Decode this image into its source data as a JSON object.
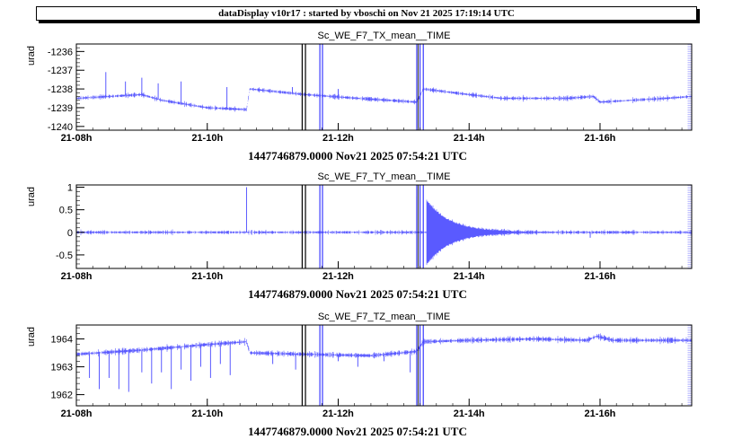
{
  "banner": "dataDisplay v10r17 : started by vboschi on Nov 21 2025 17:19:14 UTC",
  "colors": {
    "trace": "#5a5aff",
    "marker": "#000000",
    "marker_blue": "#3a3aff"
  },
  "chart_data": [
    {
      "type": "line",
      "title": "Sc_WE_F7_TX_mean__TIME",
      "ylabel": "urad",
      "footer": "1447746879.0000 Nov21 2025 07:54:21 UTC",
      "x_tick_labels": [
        "21-08h",
        "21-10h",
        "21-12h",
        "21-14h",
        "21-16h"
      ],
      "x_ticks_hours": [
        8,
        10,
        12,
        14,
        16
      ],
      "xlim_hours": [
        8.0,
        17.4
      ],
      "ylim": [
        -1240.2,
        -1235.6
      ],
      "y_ticks": [
        -1240,
        -1239,
        -1238,
        -1237,
        -1236
      ],
      "series": [
        {
          "x_hours": [
            8.0,
            9.0,
            9.3,
            10.0,
            10.6,
            10.65,
            11.5,
            12.3,
            13.2,
            13.3,
            14.0,
            14.5,
            15.0,
            15.5,
            15.9,
            16.0,
            16.5,
            17.0,
            17.4
          ],
          "values": [
            -1238.5,
            -1238.3,
            -1238.6,
            -1239.0,
            -1239.1,
            -1238.0,
            -1238.3,
            -1238.5,
            -1238.7,
            -1238.0,
            -1238.3,
            -1238.5,
            -1238.5,
            -1238.5,
            -1238.4,
            -1238.7,
            -1238.6,
            -1238.5,
            -1238.4
          ],
          "noise": 0.08,
          "spikes_x": [
            8.45,
            8.75,
            9.0,
            9.25,
            9.6,
            10.3,
            11.3,
            12.0
          ],
          "spikes_v": [
            -1237.1,
            -1237.6,
            -1237.4,
            -1237.7,
            -1237.6,
            -1237.9,
            -1237.9,
            -1238.0
          ]
        }
      ],
      "markers_black": [
        11.45,
        11.5
      ],
      "markers_blue": [
        11.72,
        11.76,
        13.2,
        13.25,
        13.3
      ]
    },
    {
      "type": "line",
      "title": "Sc_WE_F7_TY_mean__TIME",
      "ylabel": "urad",
      "footer": "1447746879.0000 Nov21 2025 07:54:21 UTC",
      "x_tick_labels": [
        "21-08h",
        "21-10h",
        "21-12h",
        "21-14h",
        "21-16h"
      ],
      "x_ticks_hours": [
        8,
        10,
        12,
        14,
        16
      ],
      "xlim_hours": [
        8.0,
        17.4
      ],
      "ylim": [
        -0.8,
        1.05
      ],
      "y_ticks": [
        -0.5,
        0,
        0.5,
        1
      ],
      "y_tick_labels": [
        "-0.5",
        "0",
        "0.5",
        "1"
      ],
      "series": [
        {
          "x_hours": [
            8.0,
            13.1,
            13.35,
            14.0,
            17.4
          ],
          "values": [
            0.0,
            0.0,
            0.0,
            0.0,
            0.0
          ],
          "noise": 0.03,
          "burst_start": 13.35,
          "burst_amp": 0.7,
          "burst_decay": 0.35,
          "spikes_x": [
            10.6,
            13.2,
            15.85
          ],
          "spikes_v": [
            1.0,
            0.8,
            -0.12
          ]
        }
      ],
      "markers_black": [
        11.45,
        11.5
      ],
      "markers_blue": [
        11.72,
        11.76,
        13.2,
        13.25,
        13.3
      ]
    },
    {
      "type": "line",
      "title": "Sc_WE_F7_TZ_mean__TIME",
      "ylabel": "urad",
      "footer": "1447746879.0000 Nov21 2025 07:54:21 UTC",
      "x_tick_labels": [
        "21-08h",
        "21-10h",
        "21-12h",
        "21-14h",
        "21-16h"
      ],
      "x_ticks_hours": [
        8,
        10,
        12,
        14,
        16
      ],
      "xlim_hours": [
        8.0,
        17.4
      ],
      "ylim": [
        1961.6,
        1964.5
      ],
      "y_ticks": [
        1962,
        1963,
        1964
      ],
      "series": [
        {
          "x_hours": [
            8.0,
            9.0,
            10.0,
            10.6,
            10.65,
            11.5,
            12.5,
            13.2,
            13.3,
            14.0,
            15.0,
            15.8,
            15.95,
            16.2,
            17.0,
            17.4
          ],
          "values": [
            1963.45,
            1963.6,
            1963.8,
            1963.9,
            1963.5,
            1963.45,
            1963.4,
            1963.55,
            1963.9,
            1963.95,
            1964.0,
            1963.95,
            1964.1,
            1963.95,
            1963.95,
            1963.95
          ],
          "noise": 0.07,
          "spikes_x": [
            8.2,
            8.35,
            8.5,
            8.65,
            8.8,
            9.0,
            9.15,
            9.3,
            9.45,
            9.6,
            9.75,
            9.9,
            10.05,
            10.2,
            10.35,
            11.0,
            11.35,
            12.0,
            12.3,
            12.7,
            13.1
          ],
          "spikes_v": [
            1962.6,
            1962.2,
            1962.6,
            1962.2,
            1962.1,
            1962.8,
            1962.4,
            1962.8,
            1962.2,
            1962.9,
            1962.5,
            1963.0,
            1962.6,
            1963.1,
            1962.7,
            1963.1,
            1962.9,
            1963.2,
            1963.0,
            1963.2,
            1962.8
          ]
        }
      ],
      "markers_black": [
        11.45,
        11.5
      ],
      "markers_blue": [
        11.72,
        11.76,
        13.2,
        13.25,
        13.3
      ]
    }
  ]
}
